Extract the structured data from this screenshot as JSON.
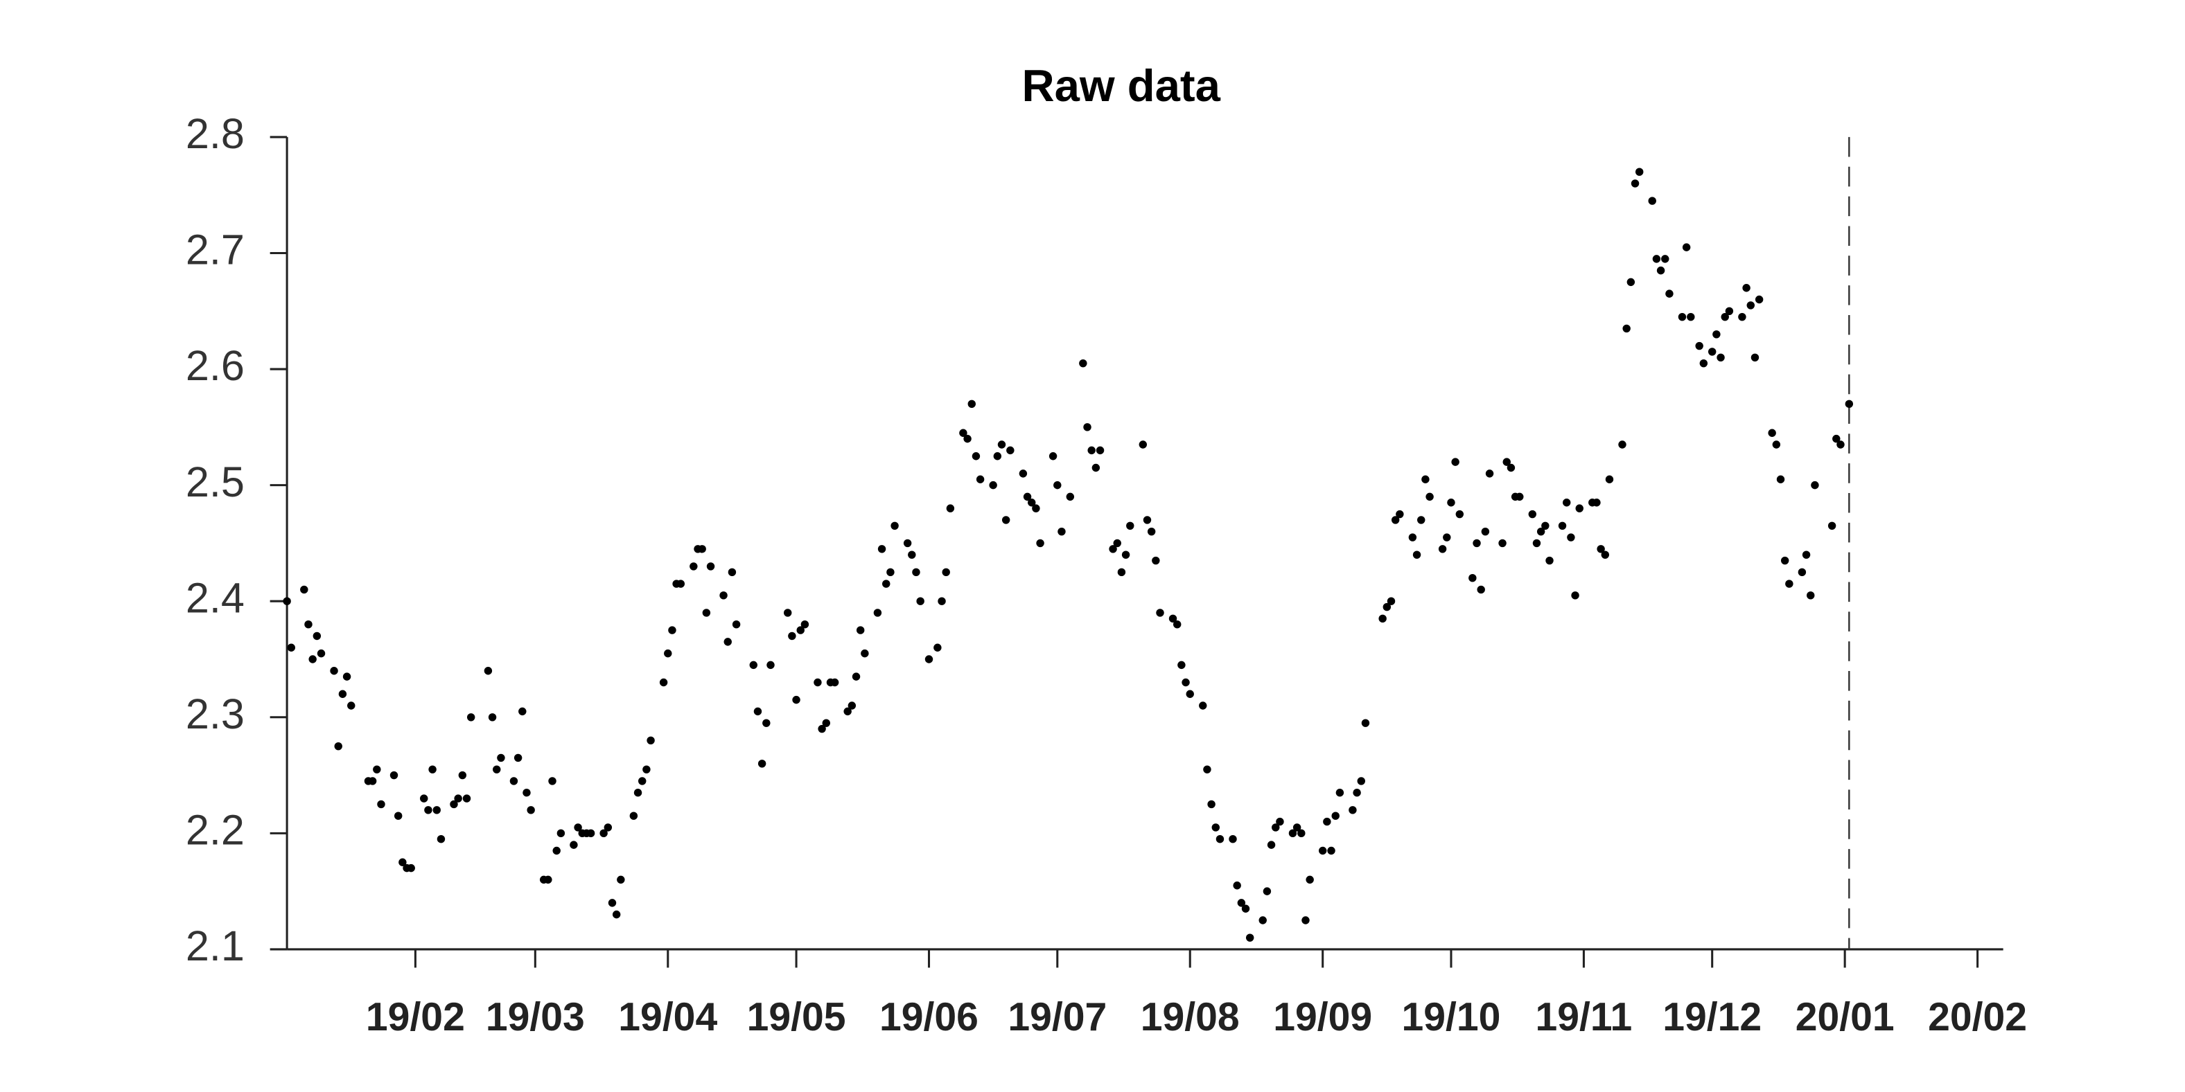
{
  "chart_data": {
    "type": "scatter",
    "title": "Raw data",
    "color": "#000000",
    "x": [
      1,
      2,
      5,
      6,
      7,
      8,
      9,
      12,
      13,
      14,
      15,
      16,
      20,
      21,
      22,
      23,
      26,
      27,
      28,
      29,
      30,
      33,
      34,
      35,
      36,
      37,
      40,
      41,
      42,
      43,
      44,
      48,
      49,
      50,
      51,
      54,
      55,
      56,
      57,
      58,
      61,
      62,
      63,
      64,
      65,
      68,
      69,
      70,
      71,
      72,
      75,
      76,
      77,
      78,
      79,
      82,
      83,
      84,
      85,
      86,
      89,
      90,
      91,
      92,
      93,
      96,
      97,
      98,
      99,
      100,
      103,
      104,
      105,
      106,
      110,
      111,
      112,
      113,
      114,
      118,
      119,
      120,
      121,
      122,
      125,
      126,
      127,
      128,
      129,
      132,
      133,
      134,
      135,
      136,
      139,
      140,
      141,
      142,
      143,
      146,
      147,
      148,
      149,
      151,
      153,
      154,
      155,
      156,
      159,
      160,
      161,
      162,
      163,
      166,
      167,
      168,
      169,
      170,
      173,
      174,
      175,
      176,
      177,
      180,
      181,
      182,
      184,
      187,
      188,
      189,
      190,
      191,
      194,
      195,
      196,
      197,
      198,
      201,
      202,
      203,
      204,
      205,
      208,
      209,
      210,
      211,
      212,
      215,
      216,
      217,
      218,
      219,
      222,
      223,
      224,
      225,
      226,
      229,
      230,
      231,
      232,
      233,
      236,
      237,
      238,
      239,
      240,
      243,
      244,
      245,
      246,
      247,
      250,
      251,
      252,
      253,
      257,
      258,
      259,
      260,
      261,
      264,
      265,
      266,
      267,
      268,
      271,
      272,
      273,
      274,
      275,
      278,
      279,
      280,
      281,
      282,
      285,
      286,
      287,
      288,
      289,
      292,
      293,
      294,
      295,
      296,
      299,
      300,
      301,
      302,
      303,
      306,
      307,
      308,
      309,
      310,
      313,
      314,
      315,
      316,
      317,
      320,
      321,
      322,
      323,
      324,
      327,
      328,
      329,
      331,
      332,
      334,
      335,
      336,
      337,
      338,
      341,
      342,
      343,
      344,
      345,
      348,
      349,
      350,
      351,
      352,
      355,
      356,
      357,
      358,
      362,
      363,
      364,
      366
    ],
    "values": [
      2.4,
      2.36,
      2.41,
      2.38,
      2.35,
      2.37,
      2.355,
      2.34,
      2.275,
      2.32,
      2.335,
      2.31,
      2.245,
      2.245,
      2.255,
      2.225,
      2.25,
      2.215,
      2.175,
      2.17,
      2.17,
      2.23,
      2.22,
      2.255,
      2.22,
      2.195,
      2.225,
      2.23,
      2.25,
      2.23,
      2.3,
      2.34,
      2.3,
      2.255,
      2.265,
      2.245,
      2.265,
      2.305,
      2.235,
      2.22,
      2.16,
      2.16,
      2.245,
      2.185,
      2.2,
      2.19,
      2.205,
      2.2,
      2.2,
      2.2,
      2.2,
      2.205,
      2.14,
      2.13,
      2.16,
      2.215,
      2.235,
      2.245,
      2.255,
      2.28,
      2.33,
      2.355,
      2.375,
      2.415,
      2.415,
      2.43,
      2.445,
      2.445,
      2.39,
      2.43,
      2.405,
      2.365,
      2.425,
      2.38,
      2.345,
      2.305,
      2.26,
      2.295,
      2.345,
      2.39,
      2.37,
      2.315,
      2.375,
      2.38,
      2.33,
      2.29,
      2.295,
      2.33,
      2.33,
      2.305,
      2.31,
      2.335,
      2.375,
      2.355,
      2.39,
      2.445,
      2.415,
      2.425,
      2.465,
      2.45,
      2.44,
      2.425,
      2.4,
      2.35,
      2.36,
      2.4,
      2.425,
      2.48,
      2.545,
      2.54,
      2.57,
      2.525,
      2.505,
      2.5,
      2.525,
      2.535,
      2.47,
      2.53,
      2.51,
      2.49,
      2.485,
      2.48,
      2.45,
      2.525,
      2.5,
      2.46,
      2.49,
      2.605,
      2.55,
      2.53,
      2.515,
      2.53,
      2.445,
      2.45,
      2.425,
      2.44,
      2.465,
      2.535,
      2.47,
      2.46,
      2.435,
      2.39,
      2.385,
      2.38,
      2.345,
      2.33,
      2.32,
      2.31,
      2.255,
      2.225,
      2.205,
      2.195,
      2.195,
      2.155,
      2.14,
      2.135,
      2.11,
      2.125,
      2.15,
      2.19,
      2.205,
      2.21,
      2.2,
      2.205,
      2.2,
      2.125,
      2.16,
      2.185,
      2.21,
      2.185,
      2.215,
      2.235,
      2.22,
      2.235,
      2.245,
      2.295,
      2.385,
      2.395,
      2.4,
      2.47,
      2.475,
      2.455,
      2.44,
      2.47,
      2.505,
      2.49,
      2.445,
      2.455,
      2.485,
      2.52,
      2.475,
      2.42,
      2.45,
      2.41,
      2.46,
      2.51,
      2.45,
      2.52,
      2.515,
      2.49,
      2.49,
      2.475,
      2.45,
      2.46,
      2.465,
      2.435,
      2.465,
      2.485,
      2.455,
      2.405,
      2.48,
      2.485,
      2.485,
      2.445,
      2.44,
      2.505,
      2.535,
      2.635,
      2.675,
      2.76,
      2.77,
      2.745,
      2.695,
      2.685,
      2.695,
      2.665,
      2.645,
      2.705,
      2.645,
      2.62,
      2.605,
      2.615,
      2.63,
      2.61,
      2.645,
      2.65,
      2.645,
      2.67,
      2.655,
      2.61,
      2.66,
      2.545,
      2.535,
      2.505,
      2.435,
      2.415,
      2.425,
      2.44,
      2.405,
      2.5,
      2.465,
      2.54,
      2.535,
      2.57
    ],
    "xlim": [
      1,
      402
    ],
    "xticks": [
      {
        "value": 31,
        "label": "19/02"
      },
      {
        "value": 59,
        "label": "19/03"
      },
      {
        "value": 90,
        "label": "19/04"
      },
      {
        "value": 120,
        "label": "19/05"
      },
      {
        "value": 151,
        "label": "19/06"
      },
      {
        "value": 181,
        "label": "19/07"
      },
      {
        "value": 212,
        "label": "19/08"
      },
      {
        "value": 243,
        "label": "19/09"
      },
      {
        "value": 273,
        "label": "19/10"
      },
      {
        "value": 304,
        "label": "19/11"
      },
      {
        "value": 334,
        "label": "19/12"
      },
      {
        "value": 365,
        "label": "20/01"
      },
      {
        "value": 396,
        "label": "20/02"
      }
    ],
    "ylim": [
      2.1,
      2.8
    ],
    "yticks": [
      2.1,
      2.2,
      2.3,
      2.4,
      2.5,
      2.6,
      2.7,
      2.8
    ],
    "reference_line_x": 366,
    "grid": false
  }
}
